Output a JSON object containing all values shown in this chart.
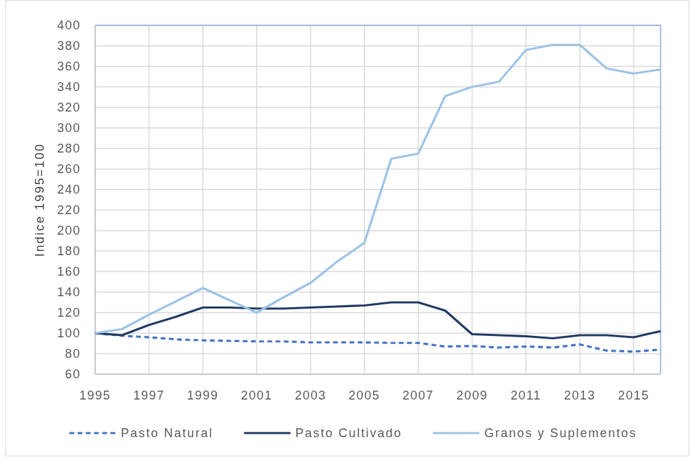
{
  "chart_data": {
    "type": "line",
    "ylabel": "Indice 1995=100",
    "x": [
      1995,
      1996,
      1997,
      1998,
      1999,
      2000,
      2001,
      2002,
      2003,
      2004,
      2005,
      2006,
      2007,
      2008,
      2009,
      2010,
      2011,
      2012,
      2013,
      2014,
      2015,
      2016
    ],
    "xlim": [
      1995,
      2016
    ],
    "xticks": [
      1995,
      1997,
      1999,
      2001,
      2003,
      2005,
      2007,
      2009,
      2011,
      2013,
      2015
    ],
    "ylim": [
      60,
      400
    ],
    "yticks": [
      60,
      80,
      100,
      120,
      140,
      160,
      180,
      200,
      220,
      240,
      260,
      280,
      300,
      320,
      340,
      360,
      380,
      400
    ],
    "grid": true,
    "legend": "bottom",
    "marker": "none",
    "series": [
      {
        "name": "Pasto Natural",
        "color": "#4472c4",
        "line_style": "dashed",
        "values": [
          100,
          97.5,
          96,
          94,
          93,
          92.5,
          92,
          92,
          91,
          91,
          91,
          90.5,
          90.5,
          87,
          87.5,
          86,
          87,
          86,
          89,
          83,
          82,
          84
        ]
      },
      {
        "name": "Pasto Cultivado",
        "color": "#203864",
        "line_style": "solid",
        "values": [
          100,
          98,
          108,
          116,
          125,
          125,
          124,
          124,
          125,
          126,
          127,
          130,
          130,
          122,
          99,
          98,
          97,
          95,
          98,
          98,
          96,
          102
        ]
      },
      {
        "name": "Granos y Suplementos",
        "color": "#9dc3e6",
        "line_style": "solid",
        "values": [
          100,
          104,
          118,
          131,
          144,
          132,
          120,
          135,
          149,
          170,
          188,
          270,
          275,
          331,
          340,
          345,
          376,
          381,
          381,
          358,
          353,
          357
        ]
      }
    ]
  }
}
